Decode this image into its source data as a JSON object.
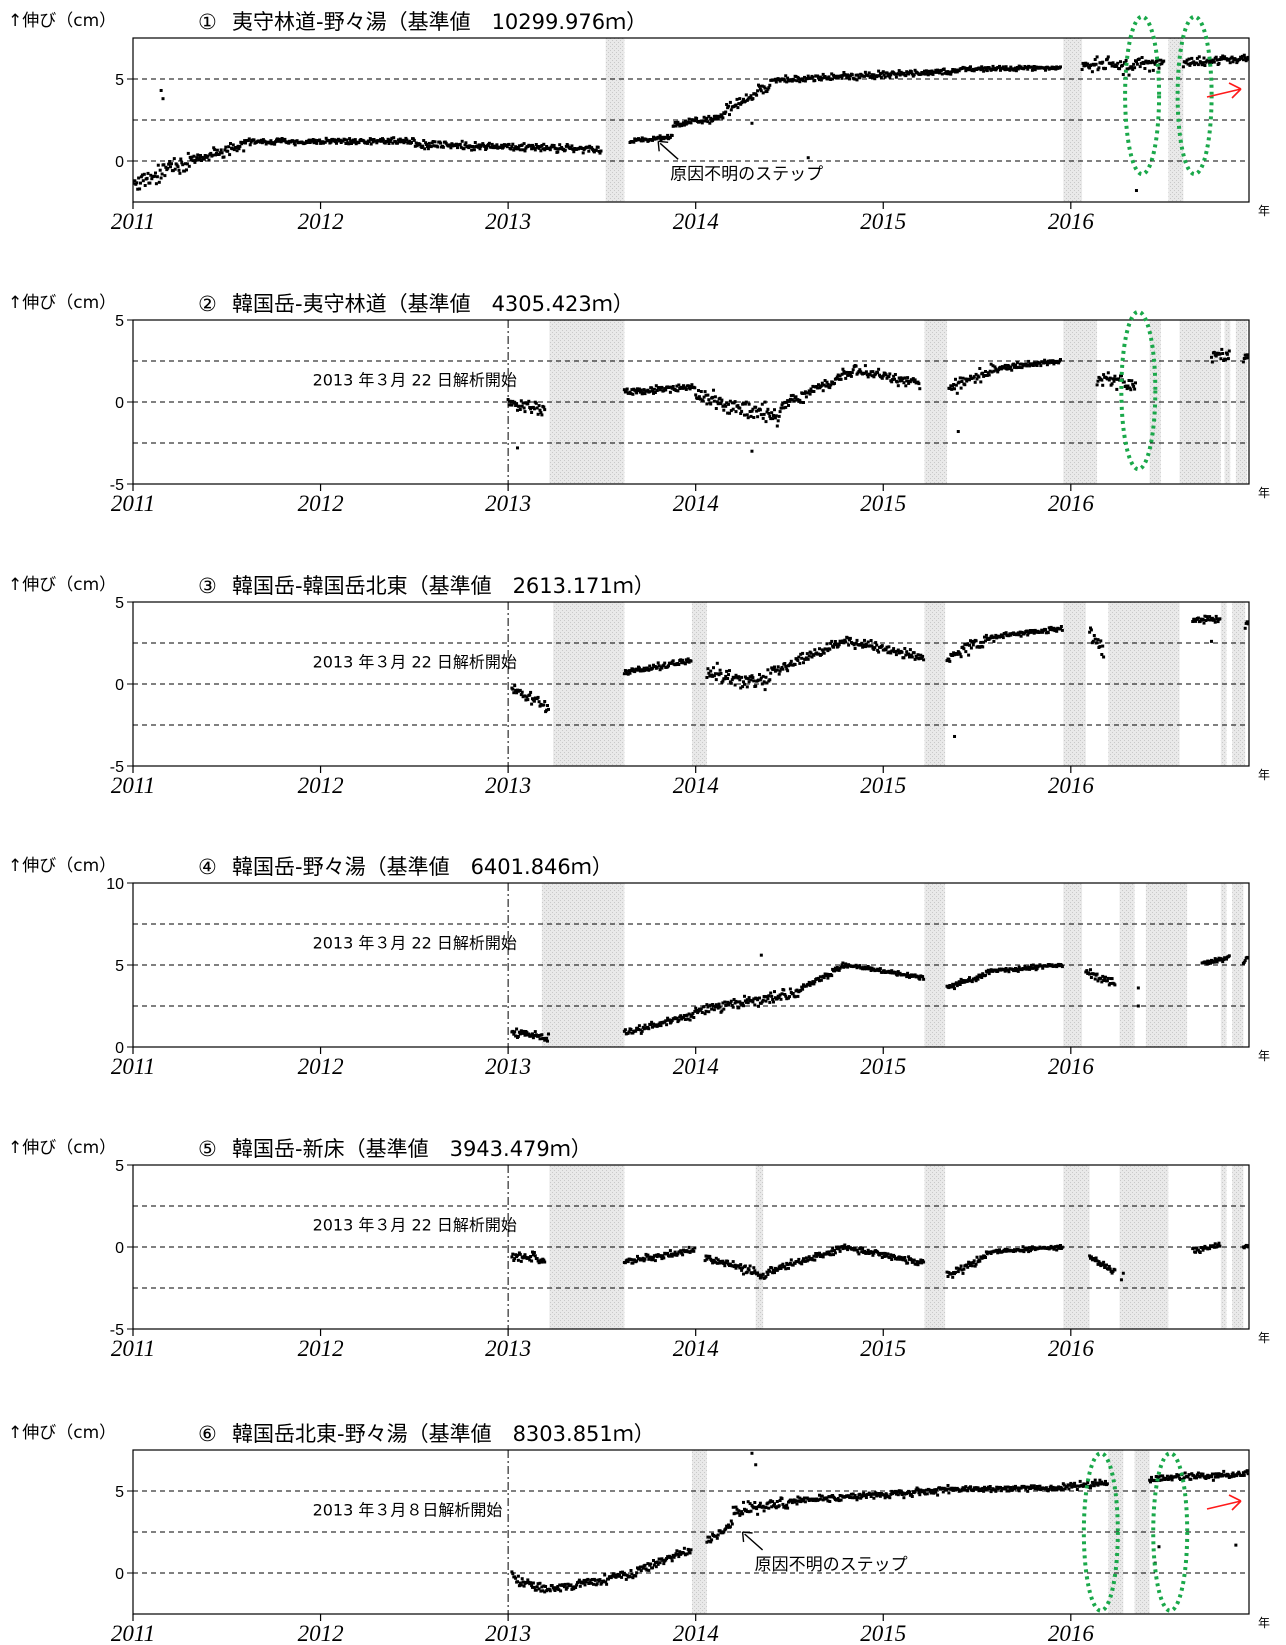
{
  "chart_data": [
    {
      "type": "scatter",
      "panel_no": "①",
      "title": "夷守林道-野々湯（基準値　10299.976ｍ）",
      "ylabel": "↑伸び（cm）",
      "x_unit": "年",
      "ylim": [
        -2.5,
        7.5
      ],
      "yticks": [
        0,
        5
      ],
      "xlim": [
        2011.0,
        2016.95
      ],
      "xticks": [
        "2011",
        "2012",
        "2013",
        "2014",
        "2015",
        "2016"
      ],
      "dashed_y": [
        0,
        2.5,
        5
      ],
      "analysis_start": null,
      "note": "",
      "annotation": {
        "text": "原因不明のステップ",
        "x": 2013.8,
        "y": 1.2
      },
      "red_arrow": true,
      "ellipses": [
        {
          "x": 2016.38,
          "y": 4.0
        },
        {
          "x": 2016.66,
          "y": 4.0
        }
      ],
      "gaps": [
        [
          2013.52,
          2013.62
        ],
        [
          2015.96,
          2016.06
        ],
        [
          2016.52,
          2016.6
        ]
      ],
      "segments": [
        {
          "x0": 2011.0,
          "x1": 2011.3,
          "y0": -1.4,
          "y1": 0.0,
          "noise": 0.9,
          "every": 0.005
        },
        {
          "x0": 2011.3,
          "x1": 2011.6,
          "y0": 0.0,
          "y1": 1.0,
          "noise": 0.5,
          "every": 0.005
        },
        {
          "x0": 2011.6,
          "x1": 2012.5,
          "y0": 1.2,
          "y1": 1.2,
          "noise": 0.25,
          "every": 0.005
        },
        {
          "x0": 2012.5,
          "x1": 2013.5,
          "y0": 1.0,
          "y1": 0.7,
          "noise": 0.35,
          "every": 0.005
        },
        {
          "x0": 2013.65,
          "x1": 2013.88,
          "y0": 1.2,
          "y1": 1.5,
          "noise": 0.2,
          "every": 0.005
        },
        {
          "x0": 2013.88,
          "x1": 2014.15,
          "y0": 2.2,
          "y1": 2.7,
          "noise": 0.35,
          "every": 0.005
        },
        {
          "x0": 2014.15,
          "x1": 2014.4,
          "y0": 3.0,
          "y1": 4.6,
          "noise": 0.5,
          "every": 0.005
        },
        {
          "x0": 2014.4,
          "x1": 2015.4,
          "y0": 4.9,
          "y1": 5.5,
          "noise": 0.3,
          "every": 0.005
        },
        {
          "x0": 2015.4,
          "x1": 2015.95,
          "y0": 5.6,
          "y1": 5.7,
          "noise": 0.2,
          "every": 0.005
        },
        {
          "x0": 2016.06,
          "x1": 2016.5,
          "y0": 5.8,
          "y1": 5.9,
          "noise": 0.7,
          "every": 0.005
        },
        {
          "x0": 2016.6,
          "x1": 2016.95,
          "y0": 6.0,
          "y1": 6.2,
          "noise": 0.4,
          "every": 0.005
        }
      ],
      "outliers": [
        [
          2011.15,
          4.3
        ],
        [
          2011.16,
          3.8
        ],
        [
          2014.3,
          2.3
        ],
        [
          2016.35,
          -1.8
        ],
        [
          2014.6,
          0.2
        ]
      ]
    },
    {
      "type": "scatter",
      "panel_no": "②",
      "title": "韓国岳-夷守林道（基準値　4305.423ｍ）",
      "ylabel": "↑伸び（cm）",
      "x_unit": "年",
      "ylim": [
        -5,
        5
      ],
      "yticks": [
        -5,
        0,
        5
      ],
      "xlim": [
        2011.0,
        2016.95
      ],
      "xticks": [
        "2011",
        "2012",
        "2013",
        "2014",
        "2015",
        "2016"
      ],
      "dashed_y": [
        -2.5,
        0,
        2.5
      ],
      "analysis_start": 2013.0,
      "note": "2013 年３月 22 日解析開始",
      "annotation": null,
      "red_arrow": false,
      "ellipses": [
        {
          "x": 2016.36,
          "y": 0.7
        }
      ],
      "gaps": [
        [
          2013.22,
          2013.62
        ],
        [
          2015.22,
          2015.34
        ],
        [
          2015.96,
          2016.14
        ],
        [
          2016.42,
          2016.48
        ],
        [
          2016.58,
          2016.8
        ],
        [
          2016.82,
          2016.85
        ],
        [
          2016.88,
          2016.94
        ]
      ],
      "segments": [
        {
          "x0": 2013.0,
          "x1": 2013.2,
          "y0": 0.1,
          "y1": -0.6,
          "noise": 0.6,
          "every": 0.005
        },
        {
          "x0": 2013.62,
          "x1": 2014.0,
          "y0": 0.6,
          "y1": 0.9,
          "noise": 0.3,
          "every": 0.005
        },
        {
          "x0": 2014.0,
          "x1": 2014.45,
          "y0": 0.4,
          "y1": -1.0,
          "noise": 0.9,
          "every": 0.005
        },
        {
          "x0": 2014.45,
          "x1": 2014.85,
          "y0": -0.3,
          "y1": 2.0,
          "noise": 0.5,
          "every": 0.005
        },
        {
          "x0": 2014.85,
          "x1": 2015.2,
          "y0": 2.0,
          "y1": 1.0,
          "noise": 0.5,
          "every": 0.005
        },
        {
          "x0": 2015.35,
          "x1": 2015.6,
          "y0": 0.8,
          "y1": 2.0,
          "noise": 0.6,
          "every": 0.005
        },
        {
          "x0": 2015.6,
          "x1": 2015.95,
          "y0": 2.0,
          "y1": 2.5,
          "noise": 0.3,
          "every": 0.005
        },
        {
          "x0": 2016.14,
          "x1": 2016.35,
          "y0": 1.5,
          "y1": 1.0,
          "noise": 0.7,
          "every": 0.005
        },
        {
          "x0": 2016.75,
          "x1": 2016.85,
          "y0": 2.8,
          "y1": 2.8,
          "noise": 0.6,
          "every": 0.005
        },
        {
          "x0": 2016.92,
          "x1": 2016.95,
          "y0": 2.6,
          "y1": 2.9,
          "noise": 0.3,
          "every": 0.005
        }
      ],
      "outliers": [
        [
          2013.05,
          -2.8
        ],
        [
          2014.3,
          -3.0
        ],
        [
          2015.4,
          -1.8
        ]
      ]
    },
    {
      "type": "scatter",
      "panel_no": "③",
      "title": "韓国岳-韓国岳北東（基準値　2613.171ｍ）",
      "ylabel": "↑伸び（cm）",
      "x_unit": "年",
      "ylim": [
        -5,
        5
      ],
      "yticks": [
        -5,
        0,
        5
      ],
      "xlim": [
        2011.0,
        2016.95
      ],
      "xticks": [
        "2011",
        "2012",
        "2013",
        "2014",
        "2015",
        "2016"
      ],
      "dashed_y": [
        -2.5,
        0,
        2.5
      ],
      "analysis_start": 2013.0,
      "note": "2013 年３月 22 日解析開始",
      "annotation": null,
      "red_arrow": false,
      "ellipses": [],
      "gaps": [
        [
          2013.24,
          2013.62
        ],
        [
          2013.98,
          2014.06
        ],
        [
          2015.22,
          2015.33
        ],
        [
          2015.96,
          2016.08
        ],
        [
          2016.2,
          2016.58
        ],
        [
          2016.8,
          2016.83
        ],
        [
          2016.86,
          2016.93
        ]
      ],
      "segments": [
        {
          "x0": 2013.02,
          "x1": 2013.22,
          "y0": -0.3,
          "y1": -1.5,
          "noise": 0.5,
          "every": 0.005
        },
        {
          "x0": 2013.62,
          "x1": 2013.98,
          "y0": 0.7,
          "y1": 1.4,
          "noise": 0.3,
          "every": 0.005
        },
        {
          "x0": 2014.06,
          "x1": 2014.4,
          "y0": 0.6,
          "y1": 0.1,
          "noise": 0.8,
          "every": 0.005
        },
        {
          "x0": 2014.4,
          "x1": 2014.8,
          "y0": 0.7,
          "y1": 2.6,
          "noise": 0.5,
          "every": 0.005
        },
        {
          "x0": 2014.8,
          "x1": 2015.22,
          "y0": 2.6,
          "y1": 1.6,
          "noise": 0.4,
          "every": 0.005
        },
        {
          "x0": 2015.34,
          "x1": 2015.55,
          "y0": 1.6,
          "y1": 2.7,
          "noise": 0.6,
          "every": 0.005
        },
        {
          "x0": 2015.55,
          "x1": 2015.96,
          "y0": 2.8,
          "y1": 3.4,
          "noise": 0.3,
          "every": 0.005
        },
        {
          "x0": 2016.1,
          "x1": 2016.18,
          "y0": 3.0,
          "y1": 2.0,
          "noise": 0.7,
          "every": 0.005
        },
        {
          "x0": 2016.65,
          "x1": 2016.8,
          "y0": 3.8,
          "y1": 4.0,
          "noise": 0.4,
          "every": 0.005
        },
        {
          "x0": 2016.93,
          "x1": 2016.95,
          "y0": 3.5,
          "y1": 3.8,
          "noise": 0.3,
          "every": 0.005
        }
      ],
      "outliers": [
        [
          2015.38,
          -3.2
        ],
        [
          2016.75,
          2.6
        ]
      ]
    },
    {
      "type": "scatter",
      "panel_no": "④",
      "title": "韓国岳-野々湯（基準値　6401.846ｍ）",
      "ylabel": "↑伸び（cm）",
      "x_unit": "年",
      "ylim": [
        0,
        10
      ],
      "yticks": [
        0,
        5,
        10
      ],
      "xlim": [
        2011.0,
        2016.95
      ],
      "xticks": [
        "2011",
        "2012",
        "2013",
        "2014",
        "2015",
        "2016"
      ],
      "dashed_y": [
        2.5,
        5,
        7.5
      ],
      "analysis_start": 2013.0,
      "note": "2013 年３月 22 日解析開始",
      "annotation": null,
      "red_arrow": false,
      "ellipses": [],
      "gaps": [
        [
          2013.18,
          2013.62
        ],
        [
          2015.22,
          2015.33
        ],
        [
          2015.96,
          2016.06
        ],
        [
          2016.26,
          2016.34
        ],
        [
          2016.4,
          2016.62
        ],
        [
          2016.8,
          2016.83
        ],
        [
          2016.86,
          2016.92
        ]
      ],
      "segments": [
        {
          "x0": 2013.02,
          "x1": 2013.22,
          "y0": 0.9,
          "y1": 0.6,
          "noise": 0.35,
          "every": 0.005
        },
        {
          "x0": 2013.62,
          "x1": 2014.0,
          "y0": 0.8,
          "y1": 2.0,
          "noise": 0.35,
          "every": 0.005
        },
        {
          "x0": 2014.0,
          "x1": 2014.55,
          "y0": 2.2,
          "y1": 3.3,
          "noise": 0.45,
          "every": 0.005
        },
        {
          "x0": 2014.55,
          "x1": 2014.8,
          "y0": 3.5,
          "y1": 5.0,
          "noise": 0.3,
          "every": 0.005
        },
        {
          "x0": 2014.8,
          "x1": 2015.22,
          "y0": 5.0,
          "y1": 4.2,
          "noise": 0.2,
          "every": 0.005
        },
        {
          "x0": 2015.34,
          "x1": 2015.55,
          "y0": 3.6,
          "y1": 4.4,
          "noise": 0.3,
          "every": 0.005
        },
        {
          "x0": 2015.55,
          "x1": 2015.96,
          "y0": 4.6,
          "y1": 5.0,
          "noise": 0.2,
          "every": 0.005
        },
        {
          "x0": 2016.08,
          "x1": 2016.24,
          "y0": 4.6,
          "y1": 3.9,
          "noise": 0.4,
          "every": 0.005
        },
        {
          "x0": 2016.7,
          "x1": 2016.85,
          "y0": 5.1,
          "y1": 5.4,
          "noise": 0.25,
          "every": 0.005
        },
        {
          "x0": 2016.92,
          "x1": 2016.95,
          "y0": 5.2,
          "y1": 5.5,
          "noise": 0.15,
          "every": 0.005
        }
      ],
      "outliers": [
        [
          2014.35,
          5.6
        ],
        [
          2016.36,
          2.5
        ],
        [
          2016.36,
          3.6
        ]
      ]
    },
    {
      "type": "scatter",
      "panel_no": "⑤",
      "title": "韓国岳-新床（基準値　3943.479ｍ）",
      "ylabel": "↑伸び（cm）",
      "x_unit": "年",
      "ylim": [
        -5,
        5
      ],
      "yticks": [
        -5,
        0,
        5
      ],
      "xlim": [
        2011.0,
        2016.95
      ],
      "xticks": [
        "2011",
        "2012",
        "2013",
        "2014",
        "2015",
        "2016"
      ],
      "dashed_y": [
        -2.5,
        0,
        2.5
      ],
      "analysis_start": 2013.0,
      "note": "2013 年３月 22 日解析開始",
      "annotation": null,
      "red_arrow": false,
      "ellipses": [],
      "gaps": [
        [
          2013.22,
          2013.62
        ],
        [
          2014.32,
          2014.36
        ],
        [
          2015.22,
          2015.33
        ],
        [
          2015.96,
          2016.1
        ],
        [
          2016.26,
          2016.52
        ],
        [
          2016.8,
          2016.83
        ],
        [
          2016.86,
          2016.92
        ]
      ],
      "segments": [
        {
          "x0": 2013.02,
          "x1": 2013.2,
          "y0": -0.5,
          "y1": -0.8,
          "noise": 0.4,
          "every": 0.005
        },
        {
          "x0": 2013.62,
          "x1": 2014.0,
          "y0": -0.9,
          "y1": -0.2,
          "noise": 0.3,
          "every": 0.005
        },
        {
          "x0": 2014.05,
          "x1": 2014.38,
          "y0": -0.6,
          "y1": -1.8,
          "noise": 0.4,
          "every": 0.005
        },
        {
          "x0": 2014.38,
          "x1": 2014.8,
          "y0": -1.5,
          "y1": 0.0,
          "noise": 0.35,
          "every": 0.005
        },
        {
          "x0": 2014.8,
          "x1": 2015.22,
          "y0": 0.0,
          "y1": -1.0,
          "noise": 0.3,
          "every": 0.005
        },
        {
          "x0": 2015.34,
          "x1": 2015.55,
          "y0": -1.8,
          "y1": -0.6,
          "noise": 0.4,
          "every": 0.005
        },
        {
          "x0": 2015.55,
          "x1": 2015.96,
          "y0": -0.3,
          "y1": 0.0,
          "noise": 0.2,
          "every": 0.005
        },
        {
          "x0": 2016.1,
          "x1": 2016.24,
          "y0": -0.6,
          "y1": -1.5,
          "noise": 0.4,
          "every": 0.005
        },
        {
          "x0": 2016.65,
          "x1": 2016.8,
          "y0": -0.2,
          "y1": 0.1,
          "noise": 0.3,
          "every": 0.005
        },
        {
          "x0": 2016.92,
          "x1": 2016.95,
          "y0": 0.0,
          "y1": 0.1,
          "noise": 0.15,
          "every": 0.005
        }
      ],
      "outliers": [
        [
          2016.27,
          -2.0
        ],
        [
          2016.28,
          -1.6
        ]
      ]
    },
    {
      "type": "scatter",
      "panel_no": "⑥",
      "title": "韓国岳北東-野々湯（基準値　8303.851ｍ）",
      "ylabel": "↑伸び（cm）",
      "x_unit": "年",
      "ylim": [
        -2.5,
        7.5
      ],
      "yticks": [
        0,
        5
      ],
      "xlim": [
        2011.0,
        2016.95
      ],
      "xticks": [
        "2011",
        "2012",
        "2013",
        "2014",
        "2015",
        "2016"
      ],
      "dashed_y": [
        0,
        2.5,
        5
      ],
      "analysis_start": 2013.0,
      "note": "2013 年３月８日解析開始",
      "annotation": {
        "text": "原因不明のステップ",
        "x": 2014.25,
        "y": 2.5
      },
      "red_arrow": true,
      "ellipses": [
        {
          "x": 2016.16,
          "y": 2.5
        },
        {
          "x": 2016.53,
          "y": 2.5
        }
      ],
      "gaps": [
        [
          2013.98,
          2014.06
        ],
        [
          2016.2,
          2016.28
        ],
        [
          2016.34,
          2016.42
        ]
      ],
      "segments": [
        {
          "x0": 2013.02,
          "x1": 2013.2,
          "y0": -0.3,
          "y1": -1.1,
          "noise": 0.5,
          "every": 0.005
        },
        {
          "x0": 2013.2,
          "x1": 2013.7,
          "y0": -1.0,
          "y1": 0.0,
          "noise": 0.45,
          "every": 0.005
        },
        {
          "x0": 2013.7,
          "x1": 2013.98,
          "y0": 0.2,
          "y1": 1.5,
          "noise": 0.35,
          "every": 0.005
        },
        {
          "x0": 2014.06,
          "x1": 2014.2,
          "y0": 2.0,
          "y1": 3.0,
          "noise": 0.35,
          "every": 0.005
        },
        {
          "x0": 2014.2,
          "x1": 2014.5,
          "y0": 3.8,
          "y1": 4.3,
          "noise": 0.5,
          "every": 0.005
        },
        {
          "x0": 2014.5,
          "x1": 2015.3,
          "y0": 4.4,
          "y1": 5.0,
          "noise": 0.3,
          "every": 0.005
        },
        {
          "x0": 2015.3,
          "x1": 2015.96,
          "y0": 5.1,
          "y1": 5.2,
          "noise": 0.25,
          "every": 0.005
        },
        {
          "x0": 2015.96,
          "x1": 2016.2,
          "y0": 5.3,
          "y1": 5.5,
          "noise": 0.4,
          "every": 0.005
        },
        {
          "x0": 2016.42,
          "x1": 2016.95,
          "y0": 5.7,
          "y1": 6.1,
          "noise": 0.35,
          "every": 0.005
        }
      ],
      "outliers": [
        [
          2014.3,
          7.3
        ],
        [
          2014.32,
          6.6
        ],
        [
          2016.47,
          1.6
        ],
        [
          2016.88,
          1.7
        ],
        [
          2016.45,
          0.6
        ]
      ]
    }
  ]
}
